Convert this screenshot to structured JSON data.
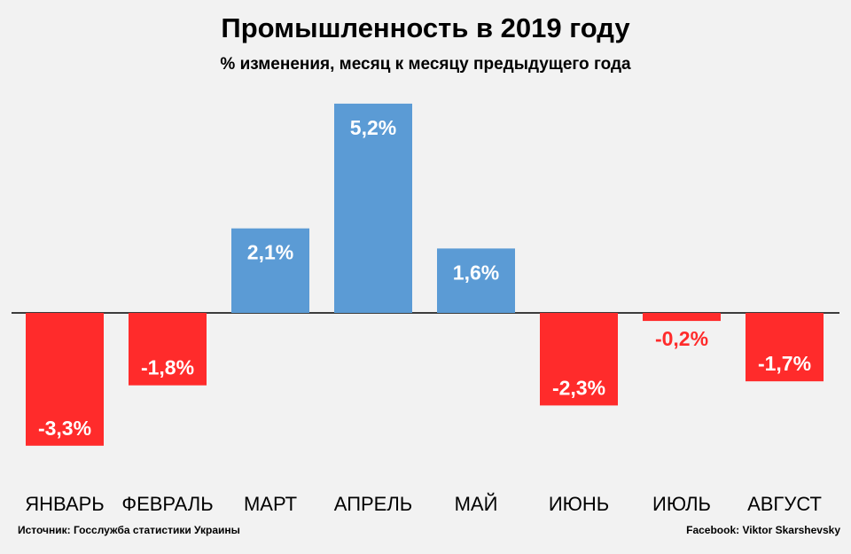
{
  "chart_data": {
    "type": "bar",
    "title": "Промышленность в 2019 году",
    "subtitle": "% изменения, месяц к месяцу предыдущего года",
    "categories": [
      "ЯНВАРЬ",
      "ФЕВРАЛЬ",
      "МАРТ",
      "АПРЕЛЬ",
      "МАЙ",
      "ИЮНЬ",
      "ИЮЛЬ",
      "АВГУСТ"
    ],
    "values": [
      -3.3,
      -1.8,
      2.1,
      5.2,
      1.6,
      -2.3,
      -0.2,
      -1.7
    ],
    "labels": [
      "-3,3%",
      "-1,8%",
      "2,1%",
      "5,2%",
      "1,6%",
      "-2,3%",
      "-0,2%",
      "-1,7%"
    ],
    "positive_color": "#5b9bd5",
    "negative_color": "#ff2b2b",
    "grid": false,
    "legend": "none"
  },
  "footer": {
    "source": "Источник: Госслужба статистики Украины",
    "credit": "Facebook: Viktor Skarshevsky"
  }
}
